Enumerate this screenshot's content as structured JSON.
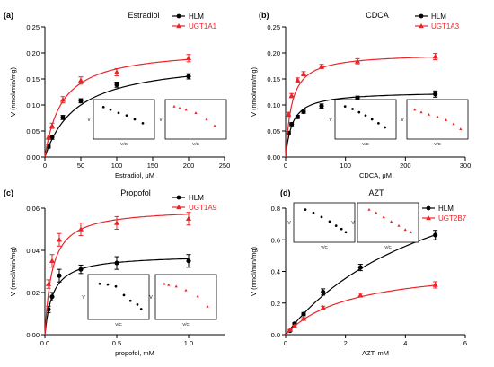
{
  "colors": {
    "hlm": "#000000",
    "ugt": "#e8262a"
  },
  "chart_data": [
    {
      "panel": "(a)",
      "title": "Estradiol",
      "type": "line",
      "xlabel": "Estradiol, μM",
      "ylabel": "V (nmol/min/mg)",
      "xlim": [
        0,
        250
      ],
      "ylim": [
        0,
        0.25
      ],
      "xticks": [
        0,
        50,
        100,
        150,
        200,
        250
      ],
      "yticks": [
        0.0,
        0.05,
        0.1,
        0.15,
        0.2,
        0.25
      ],
      "xtick_labels": [
        "0",
        "50",
        "100",
        "150",
        "200",
        "250"
      ],
      "ytick_labels": [
        "0.00",
        "0.05",
        "0.10",
        "0.15",
        "0.20",
        "0.25"
      ],
      "fit_xmax": 200,
      "series": [
        {
          "name": "HLM",
          "color": "#000000",
          "marker": "circle",
          "x": [
            5,
            10,
            25,
            50,
            100,
            200
          ],
          "y": [
            0.02,
            0.038,
            0.076,
            0.108,
            0.139,
            0.155
          ],
          "err": [
            0.003,
            0.004,
            0.004,
            0.004,
            0.005,
            0.005
          ],
          "fit": {
            "vmax": 0.19,
            "km": 45
          }
        },
        {
          "name": "UGT1A1",
          "color": "#e8262a",
          "marker": "triangle",
          "x": [
            5,
            10,
            25,
            50,
            100,
            200
          ],
          "y": [
            0.038,
            0.06,
            0.11,
            0.147,
            0.163,
            0.19
          ],
          "err": [
            0.004,
            0.005,
            0.006,
            0.007,
            0.007,
            0.007
          ],
          "fit": {
            "vmax": 0.21,
            "km": 24
          }
        }
      ],
      "insets": [
        {
          "series": "HLM",
          "color": "#000000",
          "marker": "circle",
          "ylabel": "V",
          "xlabel": "V/C",
          "points": [
            [
              0.12,
              0.12
            ],
            [
              0.25,
              0.2
            ],
            [
              0.4,
              0.3
            ],
            [
              0.55,
              0.38
            ],
            [
              0.7,
              0.5
            ],
            [
              0.85,
              0.62
            ]
          ]
        },
        {
          "series": "UGT1A1",
          "color": "#e8262a",
          "marker": "triangle",
          "ylabel": "V",
          "xlabel": "V/C",
          "points": [
            [
              0.1,
              0.1
            ],
            [
              0.2,
              0.15
            ],
            [
              0.32,
              0.2
            ],
            [
              0.5,
              0.3
            ],
            [
              0.7,
              0.5
            ],
            [
              0.85,
              0.7
            ]
          ]
        }
      ]
    },
    {
      "panel": "(b)",
      "title": "CDCA",
      "type": "line",
      "xlabel": "CDCA, μM",
      "ylabel": "V (nmol/min/mg)",
      "xlim": [
        0,
        300
      ],
      "ylim": [
        0,
        0.25
      ],
      "xticks": [
        0,
        100,
        200,
        300
      ],
      "yticks": [
        0.0,
        0.05,
        0.1,
        0.15,
        0.2,
        0.25
      ],
      "xtick_labels": [
        "0",
        "100",
        "200",
        "300"
      ],
      "ytick_labels": [
        "0.00",
        "0.05",
        "0.10",
        "0.15",
        "0.20",
        "0.25"
      ],
      "fit_xmax": 250,
      "series": [
        {
          "name": "HLM",
          "color": "#000000",
          "marker": "circle",
          "x": [
            5,
            10,
            20,
            30,
            60,
            120,
            250
          ],
          "y": [
            0.046,
            0.063,
            0.077,
            0.087,
            0.098,
            0.113,
            0.121
          ],
          "err": [
            0.003,
            0.003,
            0.003,
            0.003,
            0.004,
            0.004,
            0.006
          ],
          "fit": {
            "vmax": 0.126,
            "km": 11
          }
        },
        {
          "name": "UGT1A3",
          "color": "#e8262a",
          "marker": "triangle",
          "x": [
            5,
            10,
            20,
            30,
            60,
            120,
            250
          ],
          "y": [
            0.082,
            0.118,
            0.148,
            0.16,
            0.174,
            0.184,
            0.193
          ],
          "err": [
            0.004,
            0.004,
            0.004,
            0.004,
            0.004,
            0.005,
            0.006
          ],
          "fit": {
            "vmax": 0.2,
            "km": 10
          }
        }
      ],
      "insets": [
        {
          "series": "HLM",
          "color": "#000000",
          "marker": "circle",
          "ylabel": "V",
          "xlabel": "V/C",
          "points": [
            [
              0.12,
              0.1
            ],
            [
              0.26,
              0.18
            ],
            [
              0.38,
              0.28
            ],
            [
              0.5,
              0.38
            ],
            [
              0.62,
              0.5
            ],
            [
              0.74,
              0.62
            ],
            [
              0.86,
              0.75
            ]
          ]
        },
        {
          "series": "UGT1A3",
          "color": "#e8262a",
          "marker": "triangle",
          "ylabel": "V",
          "xlabel": "V/C",
          "points": [
            [
              0.08,
              0.2
            ],
            [
              0.2,
              0.28
            ],
            [
              0.34,
              0.35
            ],
            [
              0.5,
              0.42
            ],
            [
              0.66,
              0.52
            ],
            [
              0.8,
              0.64
            ],
            [
              0.93,
              0.8
            ]
          ]
        }
      ]
    },
    {
      "panel": "(c)",
      "title": "Propofol",
      "type": "line",
      "xlabel": "propofol, mM",
      "ylabel": "V (nmol/min/mg)",
      "xlim": [
        0,
        1.25
      ],
      "ylim": [
        0,
        0.06
      ],
      "xticks": [
        0,
        0.5,
        1.0
      ],
      "yticks": [
        0.0,
        0.02,
        0.04,
        0.06
      ],
      "xtick_labels": [
        "0.0",
        "0.5",
        "1.0"
      ],
      "ytick_labels": [
        "0.00",
        "0.02",
        "0.04",
        "0.06"
      ],
      "fit_xmax": 1.0,
      "series": [
        {
          "name": "HLM",
          "color": "#000000",
          "marker": "circle",
          "x": [
            0.025,
            0.05,
            0.1,
            0.25,
            0.5,
            1.0
          ],
          "y": [
            0.012,
            0.018,
            0.028,
            0.031,
            0.034,
            0.035
          ],
          "err": [
            0.0015,
            0.002,
            0.003,
            0.002,
            0.003,
            0.003
          ],
          "fit": {
            "vmax": 0.038,
            "km": 0.055
          }
        },
        {
          "name": "UGT1A9",
          "color": "#e8262a",
          "marker": "triangle",
          "x": [
            0.025,
            0.05,
            0.1,
            0.25,
            0.5,
            1.0
          ],
          "y": [
            0.024,
            0.035,
            0.045,
            0.05,
            0.053,
            0.055
          ],
          "err": [
            0.002,
            0.003,
            0.003,
            0.003,
            0.003,
            0.003
          ],
          "fit": {
            "vmax": 0.06,
            "km": 0.05
          }
        }
      ],
      "insets": [
        {
          "series": "HLM",
          "color": "#000000",
          "marker": "circle",
          "ylabel": "V",
          "xlabel": "V/C",
          "points": [
            [
              0.15,
              0.15
            ],
            [
              0.3,
              0.17
            ],
            [
              0.45,
              0.22
            ],
            [
              0.6,
              0.45
            ],
            [
              0.72,
              0.6
            ],
            [
              0.85,
              0.7
            ],
            [
              0.92,
              0.82
            ]
          ]
        },
        {
          "series": "UGT1A9",
          "color": "#e8262a",
          "marker": "triangle",
          "ylabel": "V",
          "xlabel": "V/C",
          "points": [
            [
              0.1,
              0.15
            ],
            [
              0.18,
              0.18
            ],
            [
              0.32,
              0.22
            ],
            [
              0.5,
              0.32
            ],
            [
              0.72,
              0.48
            ],
            [
              0.9,
              0.75
            ]
          ]
        }
      ]
    },
    {
      "panel": "(d)",
      "title": "AZT",
      "type": "line",
      "xlabel": "AZT, mM",
      "ylabel": "V (nmol/min/mg)",
      "xlim": [
        0,
        6
      ],
      "ylim": [
        0,
        0.8
      ],
      "xticks": [
        0,
        2,
        4,
        6
      ],
      "yticks": [
        0.0,
        0.2,
        0.4,
        0.6,
        0.8
      ],
      "xtick_labels": [
        "0",
        "2",
        "4",
        "6"
      ],
      "ytick_labels": [
        "0.0",
        "0.2",
        "0.4",
        "0.6",
        "0.8"
      ],
      "fit_xmax": 5,
      "series": [
        {
          "name": "HLM",
          "color": "#000000",
          "marker": "circle",
          "x": [
            0.15,
            0.3,
            0.6,
            1.25,
            2.5,
            5.0
          ],
          "y": [
            0.025,
            0.07,
            0.13,
            0.27,
            0.425,
            0.63
          ],
          "err": [
            0.005,
            0.006,
            0.01,
            0.02,
            0.02,
            0.03
          ],
          "fit": {
            "vmax": 1.3,
            "km": 5.3
          }
        },
        {
          "name": "UGT2B7",
          "color": "#e8262a",
          "marker": "triangle",
          "x": [
            0.15,
            0.3,
            0.6,
            1.25,
            2.5,
            5.0
          ],
          "y": [
            0.03,
            0.055,
            0.1,
            0.17,
            0.25,
            0.315
          ],
          "err": [
            0.004,
            0.005,
            0.008,
            0.01,
            0.012,
            0.02
          ],
          "fit": {
            "vmax": 0.45,
            "km": 2.2
          }
        }
      ],
      "insets": [
        {
          "series": "HLM",
          "color": "#000000",
          "marker": "circle",
          "ylabel": "V",
          "xlabel": "V/C",
          "points": [
            [
              0.15,
              0.1
            ],
            [
              0.3,
              0.2
            ],
            [
              0.45,
              0.33
            ],
            [
              0.6,
              0.47
            ],
            [
              0.72,
              0.6
            ],
            [
              0.82,
              0.7
            ],
            [
              0.9,
              0.8
            ]
          ]
        },
        {
          "series": "UGT2B7",
          "color": "#e8262a",
          "marker": "triangle",
          "ylabel": "V",
          "xlabel": "V/C",
          "points": [
            [
              0.15,
              0.1
            ],
            [
              0.28,
              0.2
            ],
            [
              0.42,
              0.33
            ],
            [
              0.56,
              0.47
            ],
            [
              0.7,
              0.6
            ],
            [
              0.82,
              0.72
            ],
            [
              0.92,
              0.8
            ]
          ]
        }
      ]
    }
  ]
}
